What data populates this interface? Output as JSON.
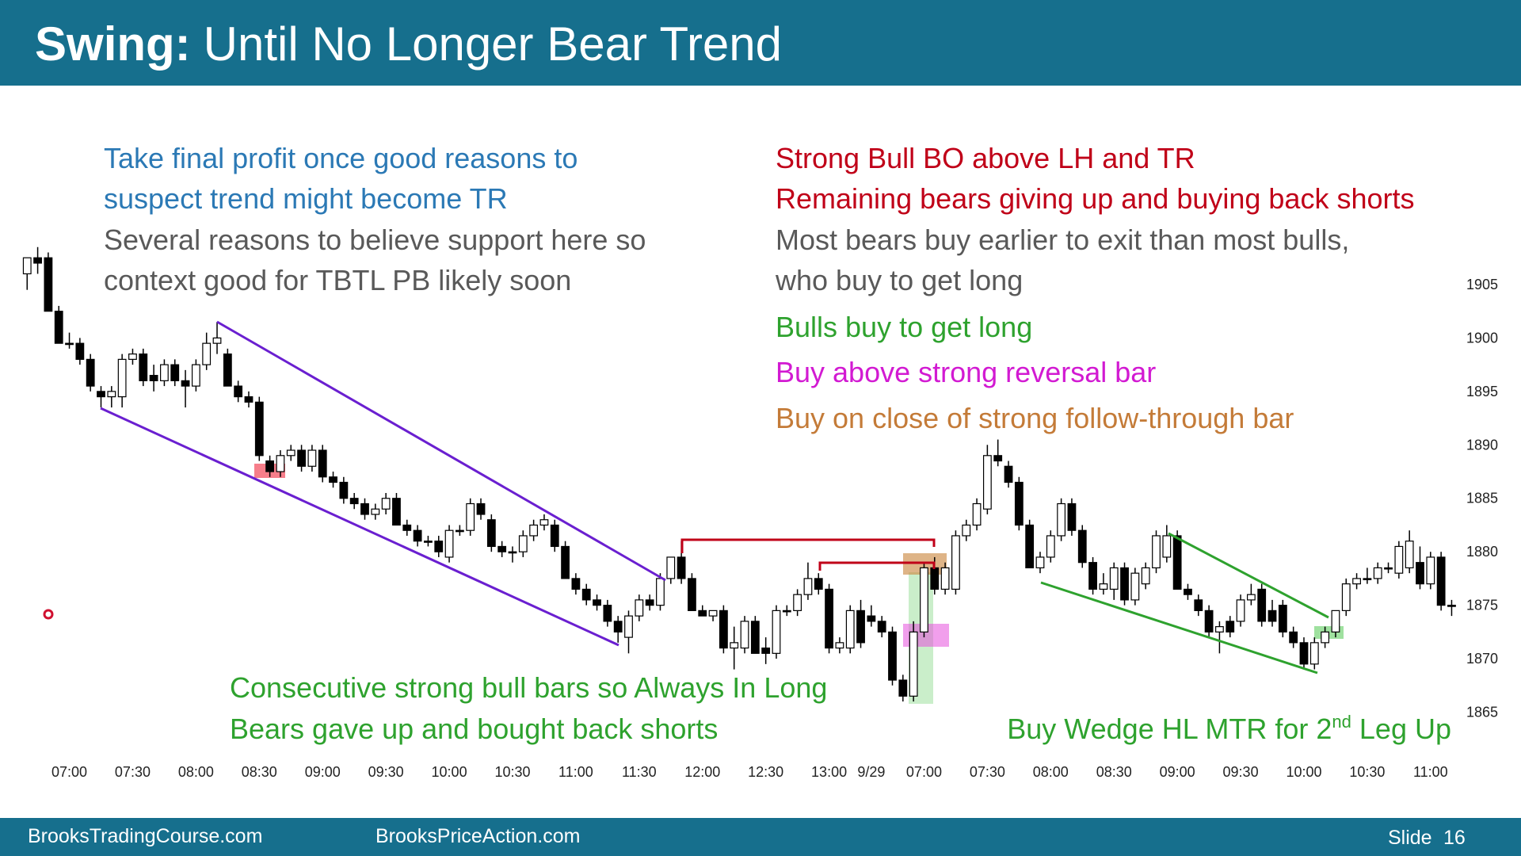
{
  "header": {
    "title_bold": "Swing:",
    "title_rest": "Until No Longer Bear Trend"
  },
  "notes_left": [
    {
      "text": "Take final profit once good reasons to",
      "color": "#2b79b5"
    },
    {
      "text": "suspect trend might become TR",
      "color": "#2b79b5"
    },
    {
      "text": "Several reasons to believe support here so",
      "color": "#595959"
    },
    {
      "text": "context good for TBTL PB likely soon",
      "color": "#595959"
    }
  ],
  "notes_right": [
    {
      "text": "Strong Bull BO above LH and TR",
      "color": "#c00018"
    },
    {
      "text": "Remaining bears giving up and buying back shorts",
      "color": "#c00018"
    },
    {
      "text": "Most bears buy earlier to exit than most bulls,",
      "color": "#595959"
    },
    {
      "text": "who buy to get long",
      "color": "#595959"
    },
    {
      "text": "Bulls buy to get long",
      "color": "#2ea22e"
    },
    {
      "text": "Buy above strong reversal bar",
      "color": "#d21ad2"
    },
    {
      "text": "Buy on close of strong follow-through bar",
      "color": "#c47b38"
    }
  ],
  "notes_bottom": [
    {
      "text": "Consecutive strong bull bars so Always In Long",
      "color": "#2ea22e"
    },
    {
      "text": "Bears gave up and bought back shorts",
      "color": "#2ea22e"
    }
  ],
  "note_wedge": {
    "parts": [
      "Buy Wedge HL MTR for 2",
      "nd",
      " Leg Up"
    ],
    "color": "#2ea22e"
  },
  "footer": {
    "left": "BrooksTradingCourse.com",
    "middle": "BrooksPriceAction.com",
    "slide": "Slide",
    "number": "16"
  },
  "chart_data": {
    "type": "candlestick",
    "up_color": "#ffffff",
    "down_color": "#000000",
    "categories": [
      null,
      null,
      null,
      null,
      "07:00",
      null,
      null,
      null,
      null,
      null,
      "07:30",
      null,
      null,
      null,
      null,
      null,
      "08:00",
      null,
      null,
      null,
      null,
      null,
      "08:30",
      null,
      null,
      null,
      null,
      null,
      "09:00",
      null,
      null,
      null,
      null,
      null,
      "09:30",
      null,
      null,
      null,
      null,
      null,
      "10:00",
      null,
      null,
      null,
      null,
      null,
      "10:30",
      null,
      null,
      null,
      null,
      null,
      "11:00",
      null,
      null,
      null,
      null,
      null,
      "11:30",
      null,
      null,
      null,
      null,
      null,
      "12:00",
      null,
      null,
      null,
      null,
      null,
      "12:30",
      null,
      null,
      null,
      null,
      null,
      "13:00",
      null,
      null,
      null,
      "9/29",
      null,
      null,
      null,
      null,
      "07:00",
      null,
      null,
      null,
      null,
      null,
      "07:30",
      null,
      null,
      null,
      null,
      null,
      "08:00",
      null,
      null,
      null,
      null,
      null,
      "08:30",
      null,
      null,
      null,
      null,
      null,
      "09:00",
      null,
      null,
      null,
      null,
      null,
      "09:30",
      null,
      null,
      null,
      null,
      null,
      "10:00",
      null,
      null,
      null,
      null,
      null,
      "10:30",
      null,
      null,
      null,
      null,
      null,
      "11:00",
      null,
      null
    ],
    "ohlc": [
      [
        1906,
        1907.5,
        1904.5,
        1907.5
      ],
      [
        1907.5,
        1908.5,
        1906,
        1907
      ],
      [
        1907.5,
        1908,
        1902.5,
        1902.5
      ],
      [
        1902.5,
        1903,
        1899.5,
        1899.5
      ],
      [
        1899.5,
        1900.5,
        1899,
        1899.5
      ],
      [
        1899.5,
        1900,
        1897.5,
        1898
      ],
      [
        1898,
        1898.5,
        1895,
        1895.5
      ],
      [
        1895,
        1895.5,
        1893.5,
        1894.5
      ],
      [
        1894.5,
        1895.5,
        1893.5,
        1895
      ],
      [
        1894.5,
        1898.5,
        1893.5,
        1898
      ],
      [
        1898,
        1899,
        1897.5,
        1898.5
      ],
      [
        1898.5,
        1899,
        1895.5,
        1896
      ],
      [
        1896.5,
        1897.5,
        1895,
        1896
      ],
      [
        1896,
        1898,
        1895.5,
        1897.5
      ],
      [
        1897.5,
        1898,
        1895.5,
        1896
      ],
      [
        1896,
        1897,
        1893.5,
        1895.5
      ],
      [
        1895.5,
        1898,
        1895,
        1897.5
      ],
      [
        1897.5,
        1900.5,
        1897,
        1899.5
      ],
      [
        1899.5,
        1901.5,
        1898.5,
        1900
      ],
      [
        1898.5,
        1899,
        1895.5,
        1895.5
      ],
      [
        1895.5,
        1896,
        1894,
        1894.5
      ],
      [
        1894.5,
        1895,
        1893.5,
        1894
      ],
      [
        1894,
        1894.5,
        1888.5,
        1889
      ],
      [
        1888.5,
        1889,
        1887,
        1887.5
      ],
      [
        1887.5,
        1889.5,
        1887,
        1889
      ],
      [
        1889,
        1890,
        1888.5,
        1889.5
      ],
      [
        1889.5,
        1890,
        1887.5,
        1888
      ],
      [
        1888,
        1890,
        1887.5,
        1889.5
      ],
      [
        1889.5,
        1890,
        1886.5,
        1887
      ],
      [
        1887,
        1887.5,
        1886,
        1886.5
      ],
      [
        1886.5,
        1887,
        1884.5,
        1885
      ],
      [
        1885,
        1885.5,
        1884,
        1884.5
      ],
      [
        1884.5,
        1885,
        1883,
        1883.5
      ],
      [
        1883.5,
        1884.5,
        1883,
        1884
      ],
      [
        1884,
        1885.5,
        1883.5,
        1885
      ],
      [
        1885,
        1885.5,
        1882.5,
        1882.5
      ],
      [
        1882.5,
        1883,
        1881.5,
        1882
      ],
      [
        1882,
        1882.5,
        1880.5,
        1881
      ],
      [
        1881,
        1881.5,
        1880.5,
        1881
      ],
      [
        1881,
        1881.5,
        1879.5,
        1880
      ],
      [
        1879.5,
        1882.5,
        1879,
        1882
      ],
      [
        1882,
        1882.5,
        1881.5,
        1882
      ],
      [
        1882,
        1885,
        1881.5,
        1884.5
      ],
      [
        1884.5,
        1885,
        1883,
        1883.5
      ],
      [
        1883,
        1883.5,
        1880,
        1880.5
      ],
      [
        1880.5,
        1881,
        1879.5,
        1880
      ],
      [
        1880,
        1880.5,
        1879,
        1880
      ],
      [
        1880,
        1882,
        1879.5,
        1881.5
      ],
      [
        1881.5,
        1883,
        1881,
        1882.5
      ],
      [
        1882.5,
        1883.5,
        1882,
        1883
      ],
      [
        1882.5,
        1883,
        1880,
        1880.5
      ],
      [
        1880.5,
        1881,
        1877.5,
        1877.5
      ],
      [
        1877.5,
        1878,
        1876,
        1876.5
      ],
      [
        1876.5,
        1877,
        1875,
        1875.5
      ],
      [
        1875.5,
        1876,
        1874.5,
        1875
      ],
      [
        1875,
        1875.5,
        1873,
        1873.5
      ],
      [
        1873.5,
        1874,
        1871.5,
        1872.5
      ],
      [
        1872,
        1874.5,
        1870.5,
        1874
      ],
      [
        1874,
        1876,
        1873.5,
        1875.5
      ],
      [
        1875.5,
        1876,
        1874.5,
        1875
      ],
      [
        1875,
        1878,
        1874.5,
        1877.5
      ],
      [
        1877.5,
        1879.5,
        1877,
        1879.5
      ],
      [
        1879.5,
        1881,
        1877,
        1877.5
      ],
      [
        1877.5,
        1878,
        1874.5,
        1874.5
      ],
      [
        1874.5,
        1875,
        1874,
        1874
      ],
      [
        1874,
        1874.5,
        1873.5,
        1874.5
      ],
      [
        1874.5,
        1875,
        1870.5,
        1871
      ],
      [
        1871,
        1873,
        1869,
        1871.5
      ],
      [
        1871,
        1874,
        1870.5,
        1873.5
      ],
      [
        1873.5,
        1874,
        1870.5,
        1870.5
      ],
      [
        1871,
        1872,
        1869.5,
        1870.5
      ],
      [
        1870.5,
        1875,
        1870,
        1874.5
      ],
      [
        1874.5,
        1875,
        1874,
        1874.5
      ],
      [
        1874.5,
        1876.5,
        1874,
        1876
      ],
      [
        1876,
        1879,
        1875.5,
        1877.5
      ],
      [
        1877.5,
        1878,
        1876,
        1876.5
      ],
      [
        1876.5,
        1877,
        1870.5,
        1871
      ],
      [
        1871,
        1872,
        1870.5,
        1871.5
      ],
      [
        1871,
        1875,
        1870.5,
        1874.5
      ],
      [
        1874.5,
        1875.5,
        1871,
        1871.5
      ],
      [
        1874,
        1875,
        1873,
        1873.5
      ],
      [
        1873.5,
        1874,
        1872,
        1872.5
      ],
      [
        1872.5,
        1873,
        1867.5,
        1868
      ],
      [
        1868,
        1868.5,
        1866,
        1866.5
      ],
      [
        1866.5,
        1873.5,
        1866,
        1872.5
      ],
      [
        1872.5,
        1879,
        1872,
        1878.5
      ],
      [
        1878.5,
        1879.5,
        1876,
        1876.5
      ],
      [
        1876.5,
        1879,
        1876,
        1878.5
      ],
      [
        1876.5,
        1882,
        1876,
        1881.5
      ],
      [
        1881.5,
        1883,
        1881,
        1882.5
      ],
      [
        1882.5,
        1885,
        1882,
        1884.5
      ],
      [
        1884,
        1890,
        1883.5,
        1889
      ],
      [
        1889,
        1890.5,
        1888,
        1888.5
      ],
      [
        1888,
        1888.5,
        1886,
        1886.5
      ],
      [
        1886.5,
        1887,
        1882,
        1882.5
      ],
      [
        1882.5,
        1883,
        1878.5,
        1878.5
      ],
      [
        1878.5,
        1880,
        1878,
        1879.5
      ],
      [
        1879.5,
        1882,
        1879,
        1881.5
      ],
      [
        1881.5,
        1885,
        1881,
        1884.5
      ],
      [
        1884.5,
        1885,
        1881.5,
        1882
      ],
      [
        1882,
        1882.5,
        1878.5,
        1879
      ],
      [
        1879,
        1879.5,
        1876,
        1876.5
      ],
      [
        1876.5,
        1878,
        1876,
        1877
      ],
      [
        1876.5,
        1879,
        1875.5,
        1878.5
      ],
      [
        1878.5,
        1879,
        1875,
        1875.5
      ],
      [
        1875.5,
        1878.5,
        1875,
        1878
      ],
      [
        1877,
        1879,
        1876.5,
        1878.5
      ],
      [
        1878.5,
        1882,
        1878,
        1881.5
      ],
      [
        1879.5,
        1882.5,
        1879,
        1881.5
      ],
      [
        1881.5,
        1882,
        1876.5,
        1876.5
      ],
      [
        1876.5,
        1877,
        1875.5,
        1876
      ],
      [
        1875.5,
        1876,
        1874,
        1874.5
      ],
      [
        1874.5,
        1875,
        1872,
        1872.5
      ],
      [
        1872.5,
        1873.5,
        1870.5,
        1873
      ],
      [
        1873.5,
        1874,
        1872,
        1872.5
      ],
      [
        1873.5,
        1876,
        1873,
        1875.5
      ],
      [
        1875.5,
        1877,
        1875,
        1876
      ],
      [
        1876.5,
        1877,
        1873,
        1873.5
      ],
      [
        1874.5,
        1875.5,
        1873,
        1873.5
      ],
      [
        1875,
        1875.5,
        1872,
        1872.5
      ],
      [
        1872.5,
        1873,
        1871,
        1871.5
      ],
      [
        1871.5,
        1872,
        1869,
        1869.5
      ],
      [
        1869.5,
        1872,
        1869,
        1871.5
      ],
      [
        1871.5,
        1873,
        1871,
        1872.5
      ],
      [
        1872.5,
        1874.5,
        1872,
        1874.5
      ],
      [
        1874.5,
        1877.5,
        1874,
        1877
      ],
      [
        1877,
        1878,
        1876.5,
        1877.5
      ],
      [
        1877.5,
        1878.5,
        1877,
        1877.5
      ],
      [
        1877.5,
        1879,
        1877,
        1878.5
      ],
      [
        1878.5,
        1879,
        1878,
        1878.5
      ],
      [
        1878,
        1881,
        1877.5,
        1880.5
      ],
      [
        1878.5,
        1882,
        1878,
        1881
      ],
      [
        1879,
        1880.5,
        1876.5,
        1877
      ],
      [
        1877,
        1880,
        1876.5,
        1879.5
      ],
      [
        1879.5,
        1880,
        1874.5,
        1875
      ],
      [
        1875,
        1875.5,
        1874,
        1875
      ]
    ],
    "ylim": [
      1862,
      1909
    ],
    "yticks": [
      1865,
      1870,
      1875,
      1880,
      1885,
      1890,
      1895,
      1900,
      1905
    ]
  }
}
